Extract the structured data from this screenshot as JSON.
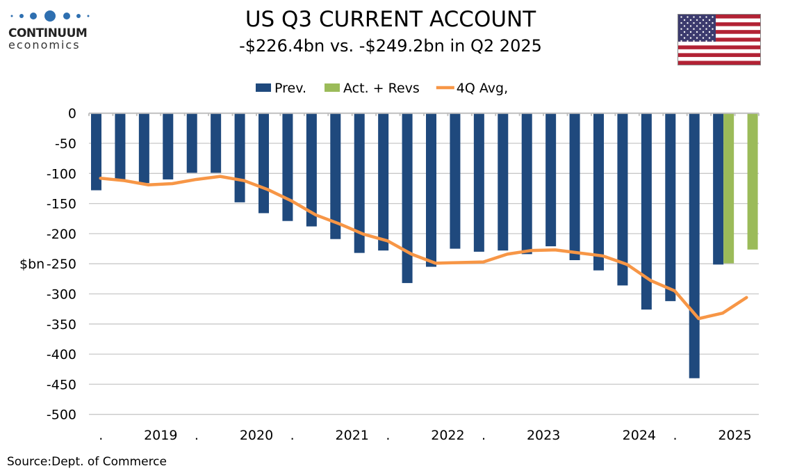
{
  "header": {
    "title": "US Q3 CURRENT ACCOUNT",
    "subtitle": "-$226.4bn vs. -$249.2bn in Q2 2025",
    "logo": {
      "name": "CONTINUUM",
      "sub": "economics",
      "color": "#2e6fb0"
    },
    "flag": "us-flag-icon"
  },
  "source": "Source:Dept. of Commerce",
  "chart_data": {
    "type": "bar",
    "title": "",
    "ylabel": "$bn",
    "ylim": [
      -500,
      0
    ],
    "yticks": [
      "0",
      "-50",
      "-100",
      "-150",
      "-200",
      "-250",
      "-300",
      "-350",
      "-400",
      "-450",
      "-500"
    ],
    "grid": true,
    "legend_placement": "top",
    "categories": [
      ".",
      "",
      "2019",
      "",
      ".",
      "",
      "2020",
      "",
      ".",
      "",
      "2021",
      "",
      ".",
      "",
      "2022",
      "",
      ".",
      "",
      "2023",
      "",
      "",
      "",
      "2024",
      "",
      ".",
      "",
      "2025",
      ""
    ],
    "series": [
      {
        "name": "Prev.",
        "kind": "bar",
        "color": "#1f497d",
        "values": [
          -128,
          -111,
          -116,
          -110,
          -99,
          -99,
          -148,
          -166,
          -179,
          -188,
          -209,
          -232,
          -228,
          -282,
          -255,
          -225,
          -230,
          -228,
          -234,
          -221,
          -244,
          -261,
          -286,
          -326,
          -312,
          -440,
          -251.3,
          null
        ]
      },
      {
        "name": "Act. + Revs",
        "kind": "bar",
        "color": "#9bbb59",
        "values": [
          null,
          null,
          null,
          null,
          null,
          null,
          null,
          null,
          null,
          null,
          null,
          null,
          null,
          null,
          null,
          null,
          null,
          null,
          null,
          null,
          null,
          null,
          null,
          null,
          null,
          null,
          -249.2,
          -226.4
        ]
      },
      {
        "name": "4Q Avg,",
        "kind": "line",
        "color": "#f79646",
        "values": [
          -108,
          -112,
          -119,
          -117,
          -110,
          -105,
          -112,
          -127,
          -146,
          -169,
          -184,
          -201,
          -212,
          -234,
          -249,
          -248,
          -247,
          -234,
          -228,
          -227,
          -232,
          -237,
          -251,
          -278,
          -295,
          -341,
          -332,
          -306
        ]
      }
    ]
  }
}
